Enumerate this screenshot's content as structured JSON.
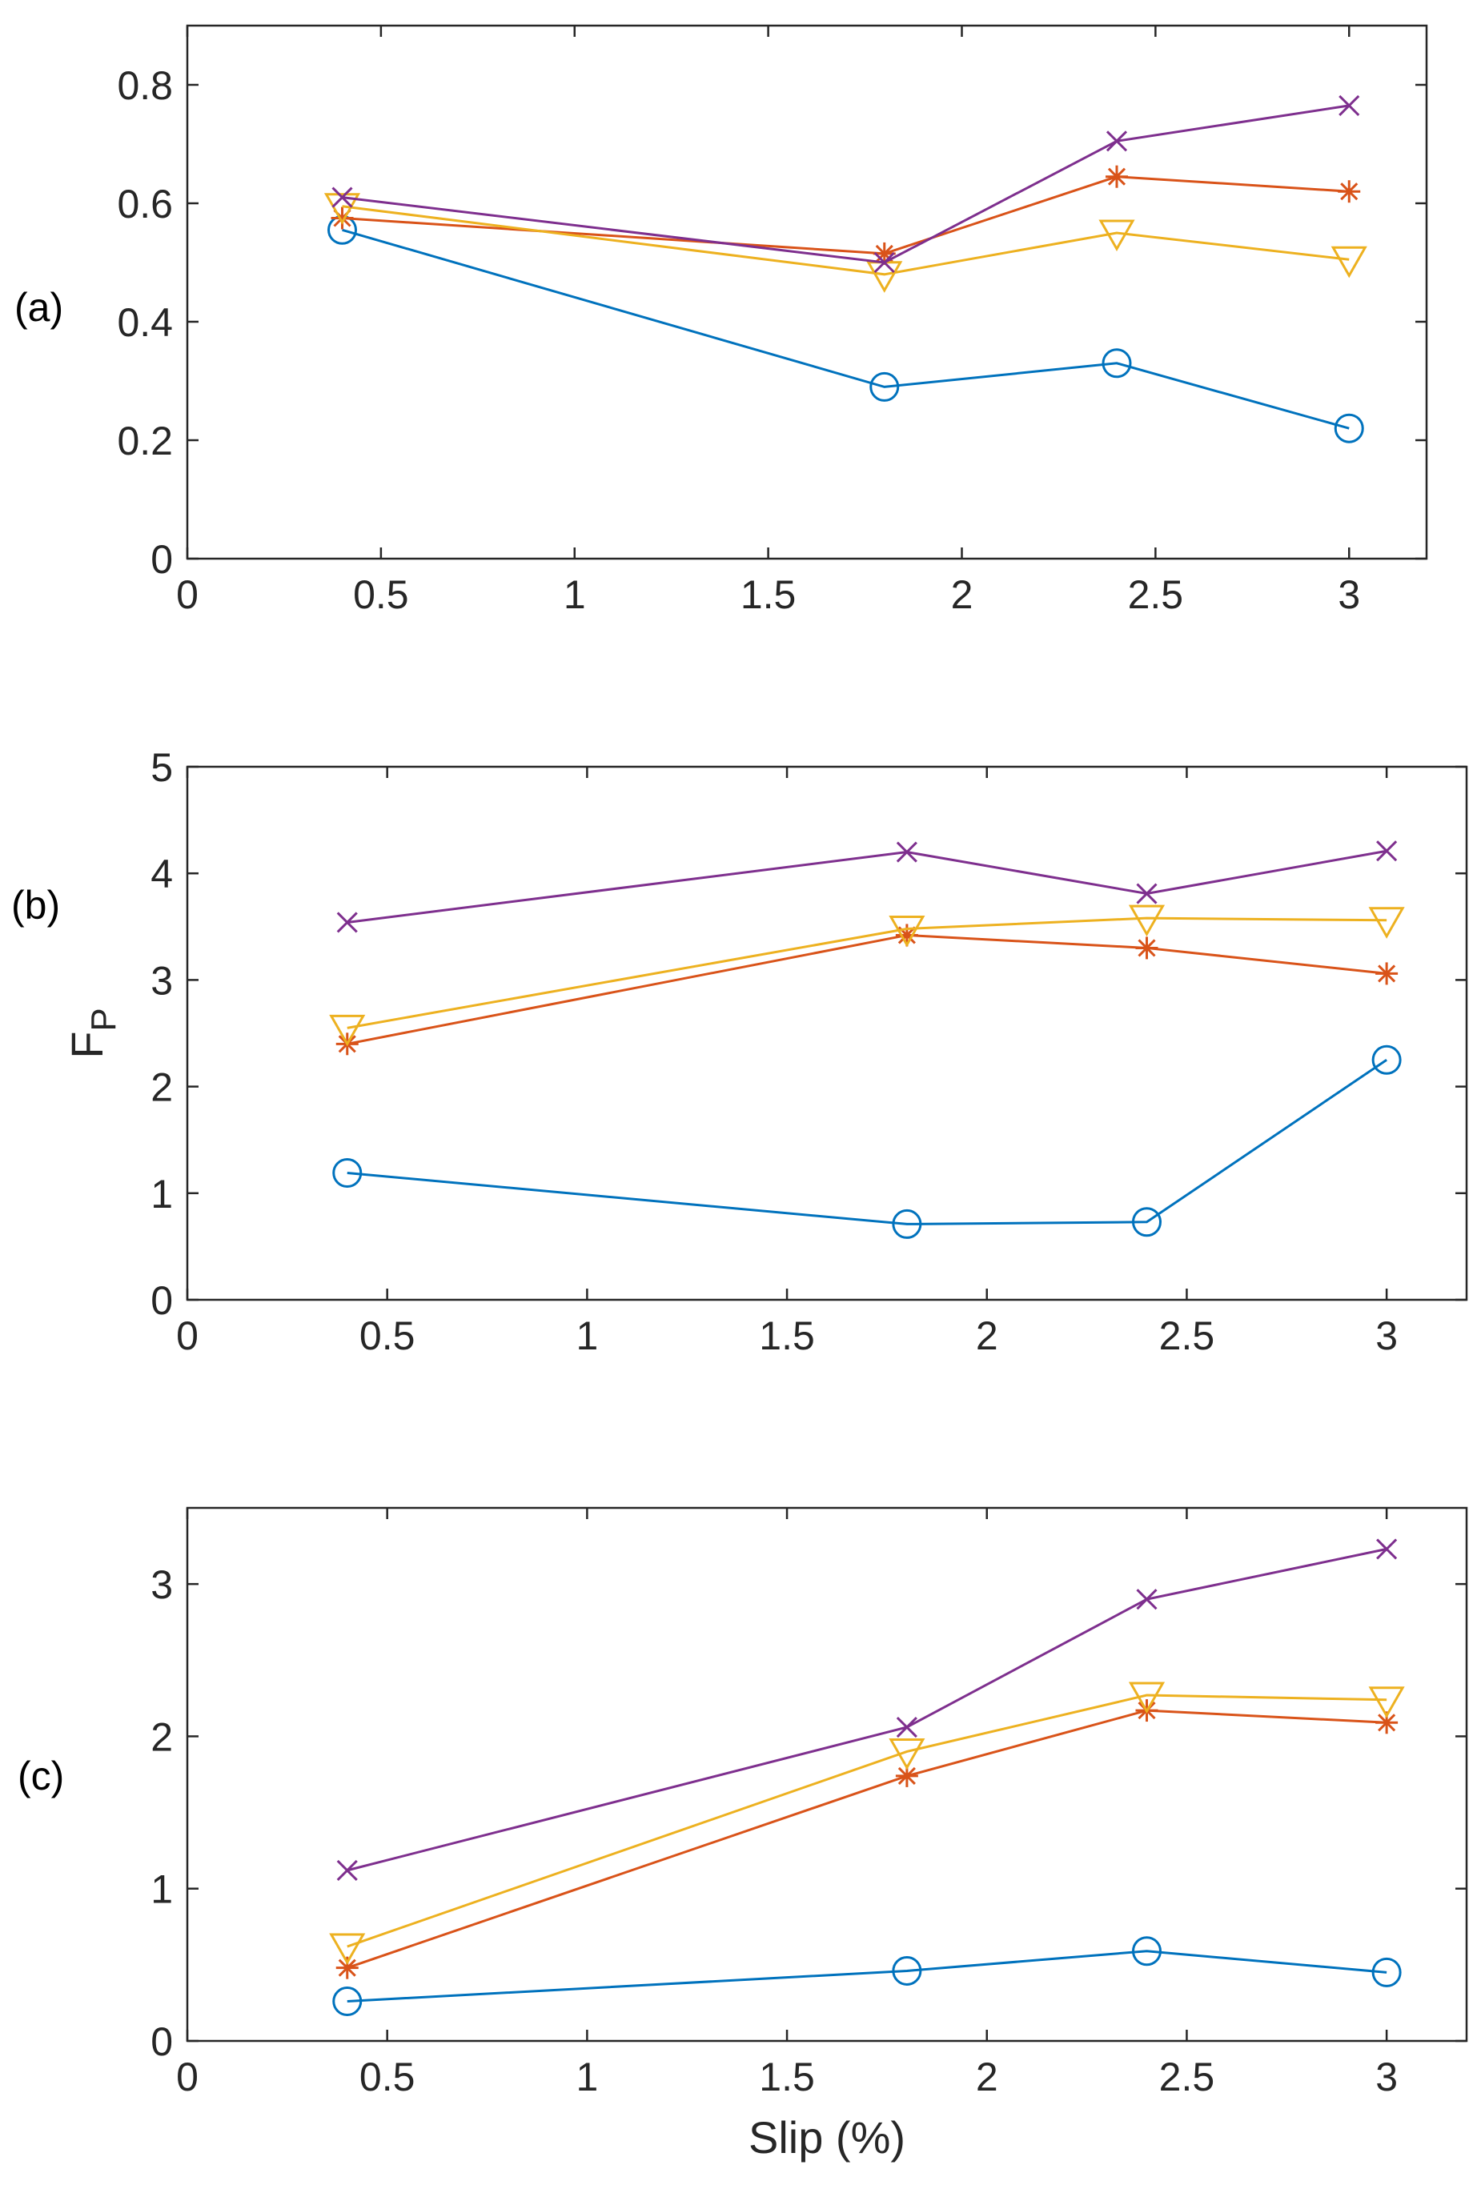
{
  "chart_data": [
    {
      "type": "line",
      "panel_label": "(a)",
      "xlim": [
        0,
        3.2
      ],
      "ylim": [
        0,
        0.9
      ],
      "xticks": [
        0,
        0.5,
        1,
        1.5,
        2,
        2.5,
        3
      ],
      "xtick_labels": [
        "0",
        "0.5",
        "1",
        "1.5",
        "2",
        "2.5",
        "3"
      ],
      "yticks": [
        0,
        0.2,
        0.4,
        0.6,
        0.8
      ],
      "ytick_labels": [
        "0",
        "0.2",
        "0.4",
        "0.6",
        "0.8"
      ],
      "x": [
        0.4,
        1.8,
        2.4,
        3.0
      ],
      "series": [
        {
          "name": "circle",
          "marker": "circle",
          "color": "#0072BD",
          "values": [
            0.555,
            0.29,
            0.33,
            0.22
          ]
        },
        {
          "name": "star",
          "marker": "asterisk",
          "color": "#D95319",
          "values": [
            0.575,
            0.515,
            0.645,
            0.62
          ]
        },
        {
          "name": "triangle",
          "marker": "triangle-down",
          "color": "#EDB120",
          "values": [
            0.595,
            0.48,
            0.55,
            0.505
          ]
        },
        {
          "name": "cross",
          "marker": "x",
          "color": "#7E2F8E",
          "values": [
            0.61,
            0.5,
            0.705,
            0.765
          ]
        }
      ]
    },
    {
      "type": "line",
      "panel_label": "(b)",
      "ylabel": "F",
      "ylabel_sub": "P",
      "xlim": [
        0,
        3.2
      ],
      "ylim": [
        0,
        5
      ],
      "xticks": [
        0,
        0.5,
        1,
        1.5,
        2,
        2.5,
        3
      ],
      "xtick_labels": [
        "0",
        "0.5",
        "1",
        "1.5",
        "2",
        "2.5",
        "3"
      ],
      "yticks": [
        0,
        1,
        2,
        3,
        4,
        5
      ],
      "ytick_labels": [
        "0",
        "1",
        "2",
        "3",
        "4",
        "5"
      ],
      "x": [
        0.4,
        1.8,
        2.4,
        3.0
      ],
      "series": [
        {
          "name": "circle",
          "marker": "circle",
          "color": "#0072BD",
          "values": [
            1.19,
            0.71,
            0.73,
            2.25
          ]
        },
        {
          "name": "star",
          "marker": "asterisk",
          "color": "#D95319",
          "values": [
            2.4,
            3.42,
            3.3,
            3.06
          ]
        },
        {
          "name": "triangle",
          "marker": "triangle-down",
          "color": "#EDB120",
          "values": [
            2.55,
            3.48,
            3.58,
            3.56
          ]
        },
        {
          "name": "cross",
          "marker": "x",
          "color": "#7E2F8E",
          "values": [
            3.54,
            4.2,
            3.81,
            4.21
          ]
        }
      ]
    },
    {
      "type": "line",
      "panel_label": "(c)",
      "xlabel": "Slip (%)",
      "xlim": [
        0,
        3.2
      ],
      "ylim": [
        0,
        3.5
      ],
      "xticks": [
        0,
        0.5,
        1,
        1.5,
        2,
        2.5,
        3
      ],
      "xtick_labels": [
        "0",
        "0.5",
        "1",
        "1.5",
        "2",
        "2.5",
        "3"
      ],
      "yticks": [
        0,
        1,
        2,
        3
      ],
      "ytick_labels": [
        "0",
        "1",
        "2",
        "3"
      ],
      "x": [
        0.4,
        1.8,
        2.4,
        3.0
      ],
      "series": [
        {
          "name": "circle",
          "marker": "circle",
          "color": "#0072BD",
          "values": [
            0.26,
            0.46,
            0.59,
            0.45
          ]
        },
        {
          "name": "star",
          "marker": "asterisk",
          "color": "#D95319",
          "values": [
            0.48,
            1.74,
            2.17,
            2.09
          ]
        },
        {
          "name": "triangle",
          "marker": "triangle-down",
          "color": "#EDB120",
          "values": [
            0.62,
            1.9,
            2.27,
            2.24
          ]
        },
        {
          "name": "cross",
          "marker": "x",
          "color": "#7E2F8E",
          "values": [
            1.12,
            2.06,
            2.9,
            3.23
          ]
        }
      ]
    }
  ]
}
